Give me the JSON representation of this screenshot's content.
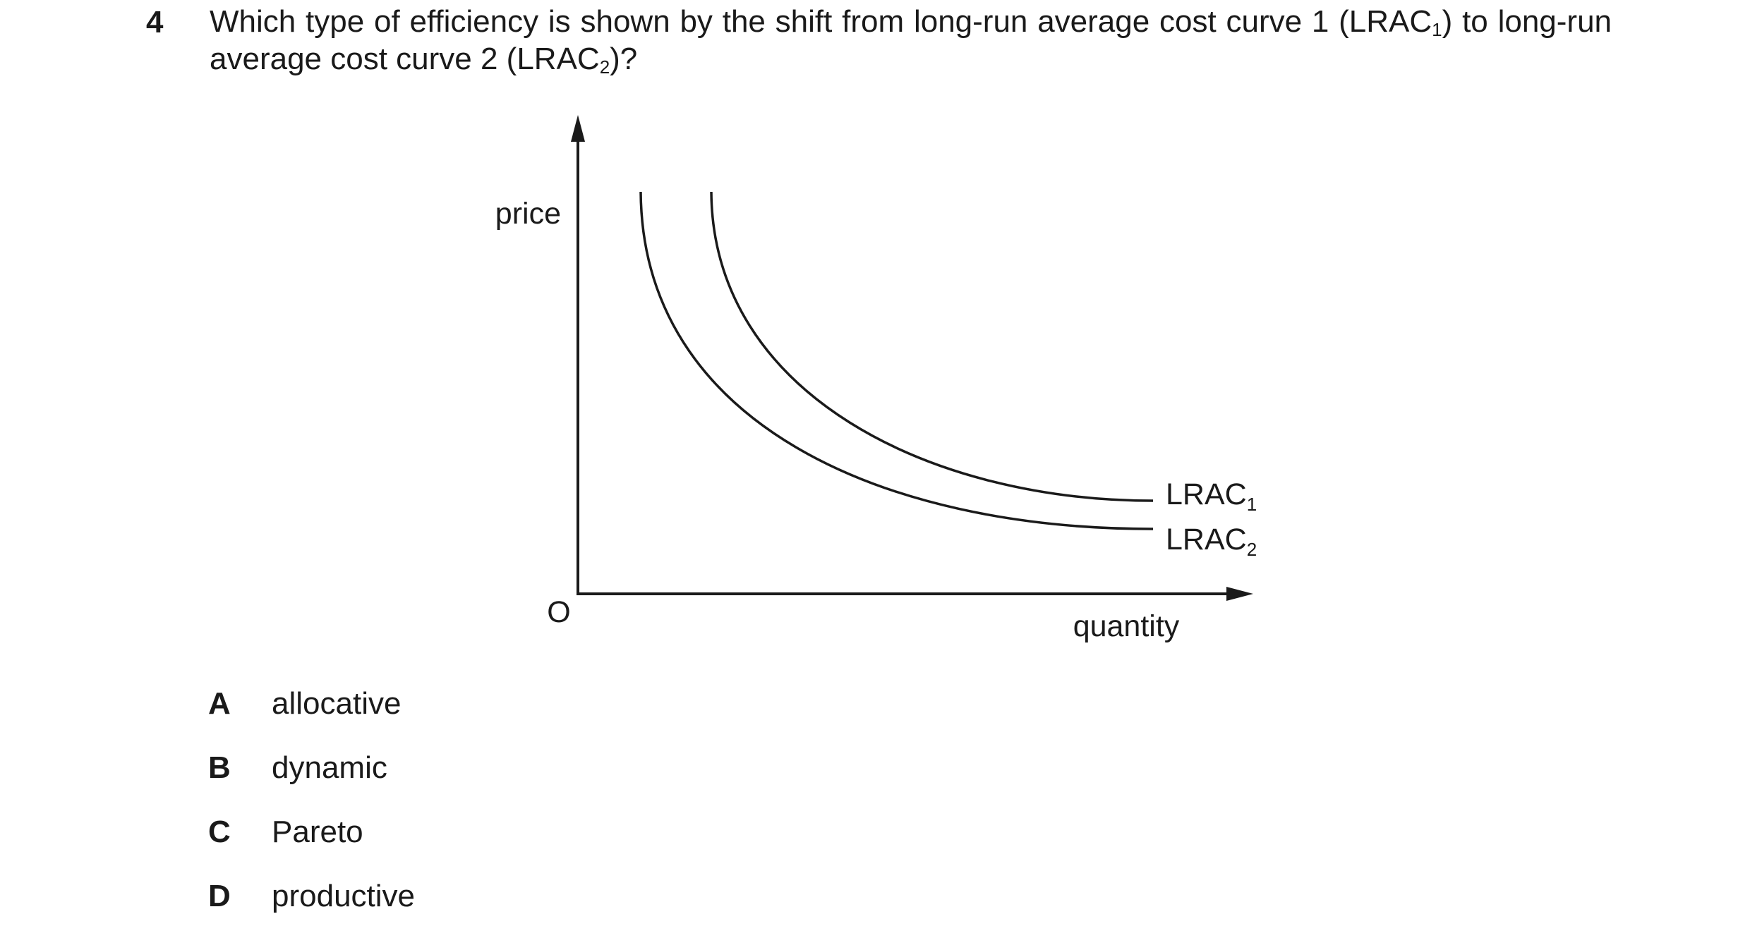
{
  "question": {
    "number": "4",
    "text_before_1": "Which type of efficiency is shown by the shift from long-run average cost curve 1 (LRAC",
    "sub_1": "1",
    "text_between": ") to long-run average cost curve 2 (LRAC",
    "sub_2": "2",
    "text_after_2": ")?"
  },
  "diagram": {
    "y_axis_label": "price",
    "x_axis_label": "quantity",
    "origin_label": "O",
    "curves": [
      {
        "label": "LRAC",
        "subscript": "1"
      },
      {
        "label": "LRAC",
        "subscript": "2"
      }
    ]
  },
  "options": [
    {
      "letter": "A",
      "text": "allocative"
    },
    {
      "letter": "B",
      "text": "dynamic"
    },
    {
      "letter": "C",
      "text": "Pareto"
    },
    {
      "letter": "D",
      "text": "productive"
    }
  ],
  "colors": {
    "ink": "#1a1a1a",
    "background": "#ffffff"
  }
}
